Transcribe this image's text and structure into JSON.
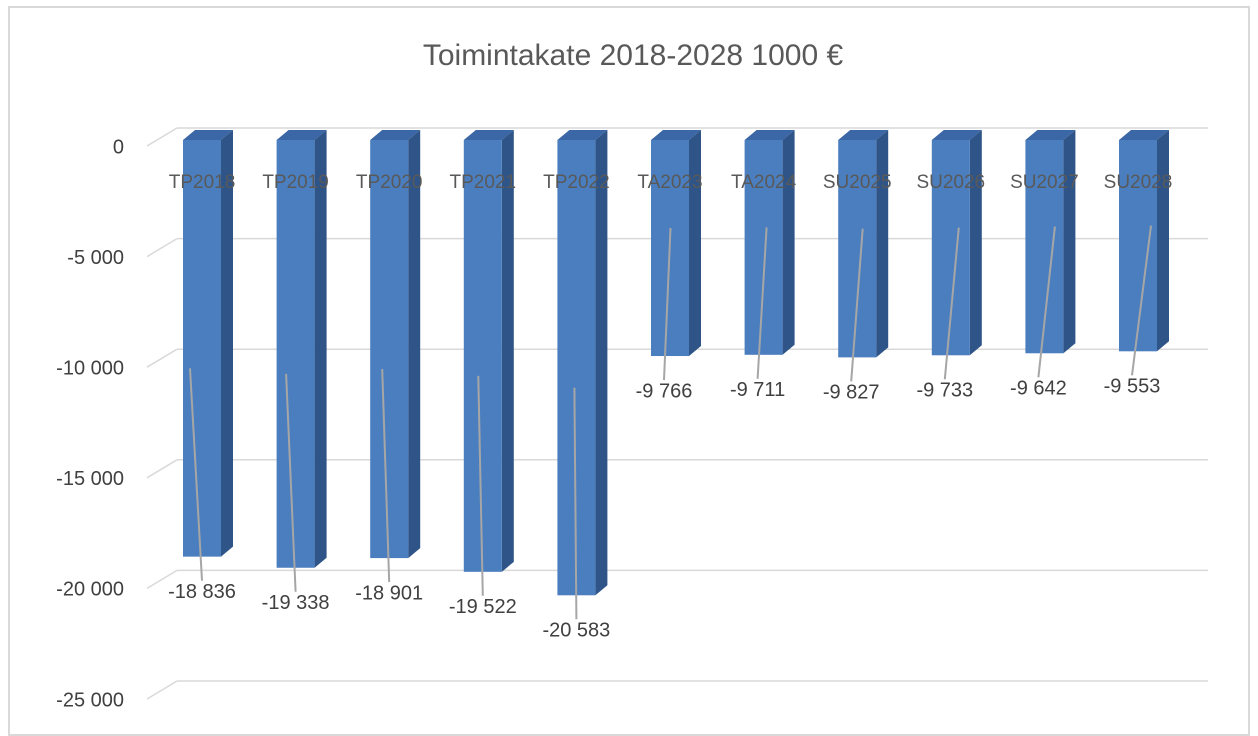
{
  "chart_data": {
    "type": "bar3d",
    "title": "Toimintakate 2018-2028 1000 €",
    "categories": [
      "TP2018",
      "TP2019",
      "TP2020",
      "TP2021",
      "TP2022",
      "TA2023",
      "TA2024",
      "SU2025",
      "SU2026",
      "SU2027",
      "SU2028"
    ],
    "values": [
      -18836,
      -19338,
      -18901,
      -19522,
      -20583,
      -9766,
      -9711,
      -9827,
      -9733,
      -9642,
      -9553
    ],
    "value_labels": [
      "-18 836",
      "-19 338",
      "-18 901",
      "-19 522",
      "-20 583",
      "-9 766",
      "-9 711",
      "-9 827",
      "-9 733",
      "-9 642",
      "-9 553"
    ],
    "color": "#4a7ebf",
    "ylim": [
      -25000,
      0
    ],
    "yticks": [
      {
        "value": -25000,
        "label": "-25 000"
      },
      {
        "value": -20000,
        "label": "-20 000"
      },
      {
        "value": -15000,
        "label": "-15 000"
      },
      {
        "value": -10000,
        "label": "-10 000"
      },
      {
        "value": -5000,
        "label": "-5 000"
      },
      0
    ],
    "grid": true
  }
}
